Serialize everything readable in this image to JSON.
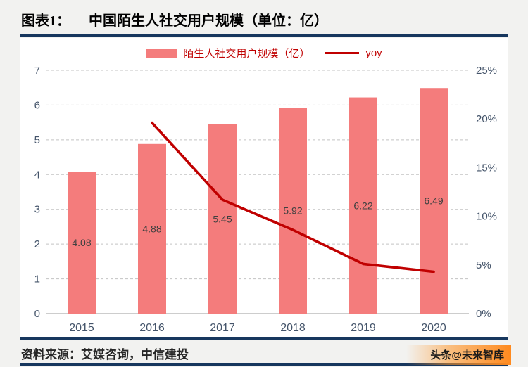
{
  "header": {
    "title_prefix": "图表1：",
    "title_main": "中国陌生人社交用户规模（单位：亿）"
  },
  "legend": {
    "bar_label": "陌生人社交用户规模（亿）",
    "line_label": "yoy"
  },
  "footer": {
    "source": "资料来源：艾媒咨询，中信建投",
    "watermark": "头条@未来智库"
  },
  "colors": {
    "bar": "#f47c7c",
    "line": "#c00000",
    "rule": "#17375e",
    "axis_text": "#44546a",
    "legend_text": "#c00000",
    "bar_label_text": "#404040",
    "page_background": "#f2f2f0",
    "card_background": "#ffffff",
    "watermark_orange": "#ff8a1e"
  },
  "chart_data": {
    "type": "bar+line combo",
    "title": "中国陌生人社交用户规模（单位：亿）",
    "categories": [
      "2015",
      "2016",
      "2017",
      "2018",
      "2019",
      "2020"
    ],
    "series": [
      {
        "name": "陌生人社交用户规模（亿）",
        "type": "bar",
        "axis": "left",
        "values": [
          4.08,
          4.88,
          5.45,
          5.92,
          6.22,
          6.49
        ],
        "labels": [
          "4.08",
          "4.88",
          "5.45",
          "5.92",
          "6.22",
          "6.49"
        ]
      },
      {
        "name": "yoy",
        "type": "line",
        "axis": "right",
        "unit": "%",
        "values": [
          null,
          19.6,
          11.7,
          8.6,
          5.1,
          4.3
        ]
      }
    ],
    "left_axis": {
      "min": 0,
      "max": 7,
      "step": 1,
      "ticks": [
        "0",
        "1",
        "2",
        "3",
        "4",
        "5",
        "6",
        "7"
      ]
    },
    "right_axis": {
      "min": 0,
      "max": 25,
      "step": 5,
      "ticks": [
        "0%",
        "5%",
        "10%",
        "15%",
        "20%",
        "25%"
      ]
    },
    "grid": true,
    "gridline_style": "dashed horizontal",
    "legend_position": "top"
  }
}
